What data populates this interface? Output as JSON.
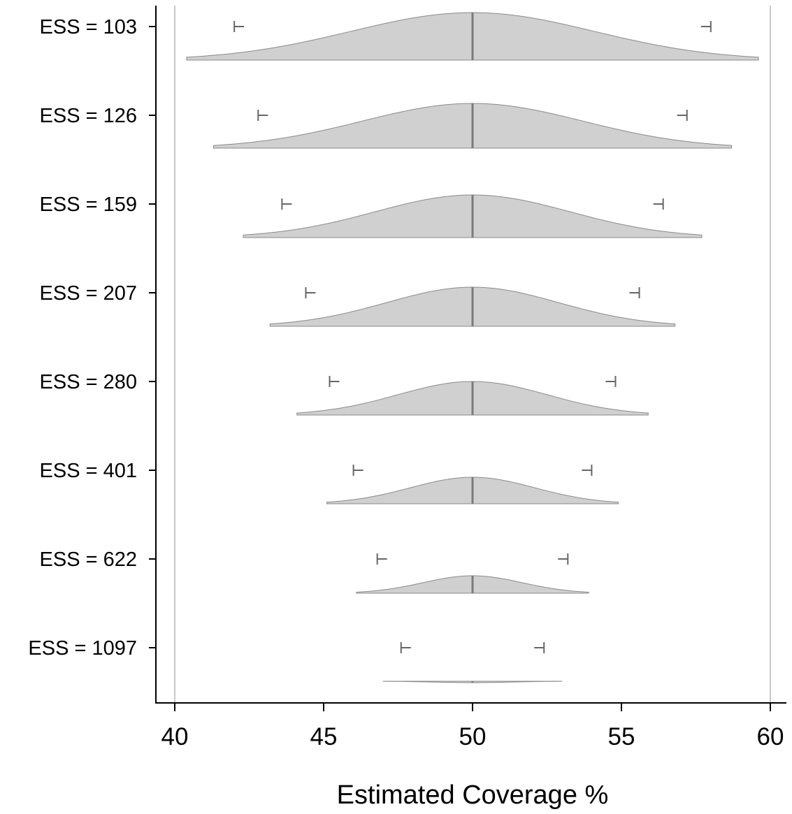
{
  "chart_data": {
    "type": "violin",
    "title": "",
    "xlabel": "Estimated Coverage %",
    "ylabel": "",
    "xlim": [
      40,
      60
    ],
    "xticks": [
      40,
      45,
      50,
      55,
      60
    ],
    "reference_lines": [
      40,
      60
    ],
    "grid": false,
    "legend": "none",
    "colors": {
      "fill": "#d0d0d0",
      "outline": "#8a8a8a",
      "median": "#7a7a7a",
      "ci_marker": "#666666",
      "reference_line": "#c8c8c8",
      "axis": "#000000"
    },
    "categories": [
      {
        "label": "ESS = 103",
        "ess": 103,
        "center": 50,
        "lower": 40.4,
        "upper": 59.6,
        "ci_lower": 42.0,
        "ci_upper": 58.0
      },
      {
        "label": "ESS = 126",
        "ess": 126,
        "center": 50,
        "lower": 41.3,
        "upper": 58.7,
        "ci_lower": 42.8,
        "ci_upper": 57.2
      },
      {
        "label": "ESS = 159",
        "ess": 159,
        "center": 50,
        "lower": 42.3,
        "upper": 57.7,
        "ci_lower": 43.6,
        "ci_upper": 56.4
      },
      {
        "label": "ESS = 207",
        "ess": 207,
        "center": 50,
        "lower": 43.2,
        "upper": 56.8,
        "ci_lower": 44.4,
        "ci_upper": 55.6
      },
      {
        "label": "ESS = 280",
        "ess": 280,
        "center": 50,
        "lower": 44.1,
        "upper": 55.9,
        "ci_lower": 45.2,
        "ci_upper": 54.8
      },
      {
        "label": "ESS = 401",
        "ess": 401,
        "center": 50,
        "lower": 45.1,
        "upper": 54.9,
        "ci_lower": 46.0,
        "ci_upper": 54.0
      },
      {
        "label": "ESS = 622",
        "ess": 622,
        "center": 50,
        "lower": 46.1,
        "upper": 53.9,
        "ci_lower": 46.8,
        "ci_upper": 53.2
      },
      {
        "label": "ESS = 1097",
        "ess": 1097,
        "center": 50,
        "lower": 47.0,
        "upper": 53.0,
        "ci_lower": 47.6,
        "ci_upper": 52.4
      }
    ]
  }
}
